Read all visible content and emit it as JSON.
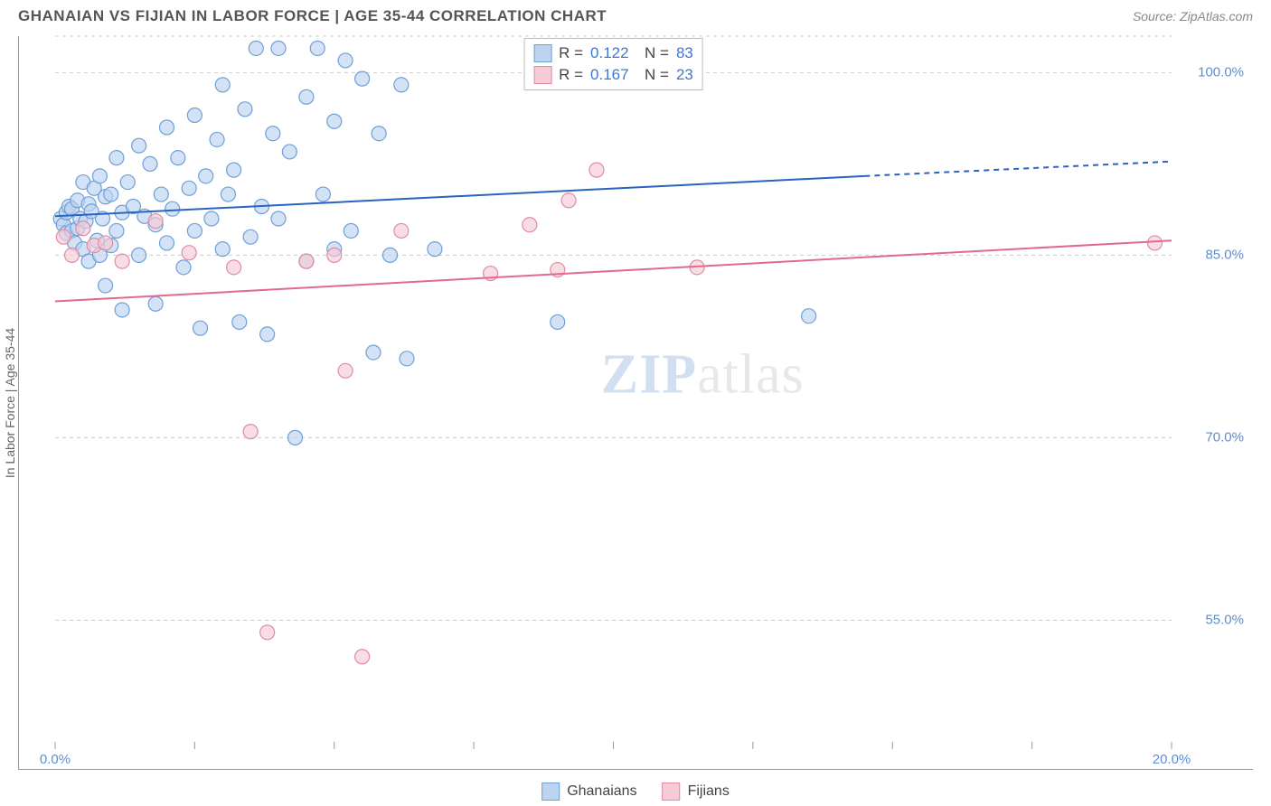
{
  "header": {
    "title": "GHANAIAN VS FIJIAN IN LABOR FORCE | AGE 35-44 CORRELATION CHART",
    "source": "Source: ZipAtlas.com"
  },
  "chart": {
    "type": "scatter",
    "ylabel": "In Labor Force | Age 35-44",
    "xlim": [
      0,
      20
    ],
    "ylim": [
      45,
      103
    ],
    "xtick_positions": [
      0,
      2.5,
      5,
      7.5,
      10,
      12.5,
      15,
      17.5,
      20
    ],
    "xtick_labels": {
      "0": "0.0%",
      "20": "20.0%"
    },
    "ytick_positions": [
      55,
      70,
      85,
      100
    ],
    "ytick_labels": {
      "55": "55.0%",
      "70": "70.0%",
      "85": "85.0%",
      "100": "100.0%"
    },
    "background_color": "#ffffff",
    "grid_color": "#cccccc",
    "axis_color": "#999999",
    "marker_radius": 8,
    "marker_stroke_width": 1.2,
    "line_width": 2,
    "watermark": {
      "part1": "ZIP",
      "part2": "atlas"
    },
    "series": [
      {
        "name": "Ghanaians",
        "fill": "#bcd4ef",
        "stroke": "#6f9fd8",
        "fill_opacity": 0.65,
        "line_color": "#2a63c0",
        "R": "0.122",
        "N": "83",
        "trend": {
          "x1": 0,
          "y1": 88.2,
          "x2": 14.5,
          "y2": 91.5,
          "dash_x2": 20,
          "dash_y2": 92.7
        },
        "points": [
          [
            0.1,
            88
          ],
          [
            0.15,
            87.5
          ],
          [
            0.2,
            88.5
          ],
          [
            0.2,
            86.8
          ],
          [
            0.25,
            89
          ],
          [
            0.3,
            87
          ],
          [
            0.3,
            88.8
          ],
          [
            0.35,
            86
          ],
          [
            0.4,
            89.5
          ],
          [
            0.4,
            87.2
          ],
          [
            0.45,
            88
          ],
          [
            0.5,
            91
          ],
          [
            0.5,
            85.5
          ],
          [
            0.55,
            87.8
          ],
          [
            0.6,
            89.2
          ],
          [
            0.6,
            84.5
          ],
          [
            0.65,
            88.6
          ],
          [
            0.7,
            90.5
          ],
          [
            0.75,
            86.2
          ],
          [
            0.8,
            91.5
          ],
          [
            0.8,
            85
          ],
          [
            0.85,
            88
          ],
          [
            0.9,
            89.8
          ],
          [
            0.9,
            82.5
          ],
          [
            1.0,
            90
          ],
          [
            1.0,
            85.8
          ],
          [
            1.1,
            93
          ],
          [
            1.1,
            87
          ],
          [
            1.2,
            88.5
          ],
          [
            1.2,
            80.5
          ],
          [
            1.3,
            91
          ],
          [
            1.4,
            89
          ],
          [
            1.5,
            94
          ],
          [
            1.5,
            85
          ],
          [
            1.6,
            88.2
          ],
          [
            1.7,
            92.5
          ],
          [
            1.8,
            87.5
          ],
          [
            1.8,
            81
          ],
          [
            1.9,
            90
          ],
          [
            2.0,
            95.5
          ],
          [
            2.0,
            86
          ],
          [
            2.1,
            88.8
          ],
          [
            2.2,
            93
          ],
          [
            2.3,
            84
          ],
          [
            2.4,
            90.5
          ],
          [
            2.5,
            96.5
          ],
          [
            2.5,
            87
          ],
          [
            2.6,
            79
          ],
          [
            2.7,
            91.5
          ],
          [
            2.8,
            88
          ],
          [
            2.9,
            94.5
          ],
          [
            3.0,
            99
          ],
          [
            3.0,
            85.5
          ],
          [
            3.1,
            90
          ],
          [
            3.2,
            92
          ],
          [
            3.3,
            79.5
          ],
          [
            3.4,
            97
          ],
          [
            3.5,
            86.5
          ],
          [
            3.6,
            102
          ],
          [
            3.7,
            89
          ],
          [
            3.8,
            78.5
          ],
          [
            3.9,
            95
          ],
          [
            4.0,
            102
          ],
          [
            4.0,
            88
          ],
          [
            4.2,
            93.5
          ],
          [
            4.3,
            70
          ],
          [
            4.5,
            98
          ],
          [
            4.5,
            84.5
          ],
          [
            4.7,
            102
          ],
          [
            4.8,
            90
          ],
          [
            5.0,
            96
          ],
          [
            5.0,
            85.5
          ],
          [
            5.2,
            101
          ],
          [
            5.3,
            87
          ],
          [
            5.5,
            99.5
          ],
          [
            5.7,
            77
          ],
          [
            5.8,
            95
          ],
          [
            6.0,
            85
          ],
          [
            6.2,
            99
          ],
          [
            6.3,
            76.5
          ],
          [
            6.8,
            85.5
          ],
          [
            9.0,
            79.5
          ],
          [
            13.5,
            80
          ]
        ]
      },
      {
        "name": "Fijians",
        "fill": "#f6cbd6",
        "stroke": "#e08ba6",
        "fill_opacity": 0.65,
        "line_color": "#e16b8c",
        "R": "0.167",
        "N": "23",
        "trend": {
          "x1": 0,
          "y1": 81.2,
          "x2": 20,
          "y2": 86.2
        },
        "points": [
          [
            0.15,
            86.5
          ],
          [
            0.3,
            85
          ],
          [
            0.5,
            87.2
          ],
          [
            0.7,
            85.8
          ],
          [
            0.9,
            86
          ],
          [
            1.2,
            84.5
          ],
          [
            1.8,
            87.8
          ],
          [
            2.4,
            85.2
          ],
          [
            3.2,
            84
          ],
          [
            3.5,
            70.5
          ],
          [
            3.8,
            54
          ],
          [
            4.5,
            84.5
          ],
          [
            5.0,
            85
          ],
          [
            5.2,
            75.5
          ],
          [
            5.5,
            52
          ],
          [
            6.2,
            87
          ],
          [
            7.8,
            83.5
          ],
          [
            8.5,
            87.5
          ],
          [
            9.0,
            83.8
          ],
          [
            9.2,
            89.5
          ],
          [
            9.7,
            92
          ],
          [
            11.5,
            84
          ],
          [
            19.7,
            86
          ]
        ]
      }
    ]
  },
  "legend": {
    "series1_label": "Ghanaians",
    "series2_label": "Fijians"
  }
}
